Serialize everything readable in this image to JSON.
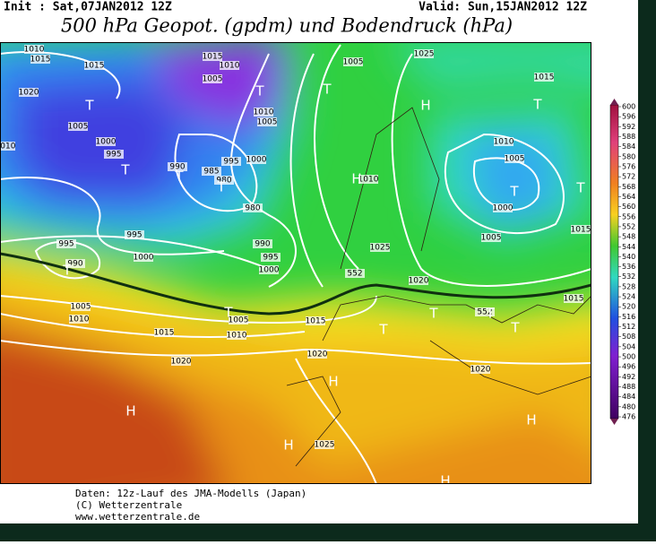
{
  "header": {
    "init": "Init : Sat,07JAN2012 12Z",
    "valid": "Valid: Sun,15JAN2012 12Z",
    "title": "500 hPa Geopot. (gpdm) und Bodendruck (hPa)"
  },
  "map": {
    "isobar_labels": [
      "1010",
      "1015",
      "1015",
      "1020",
      "1015",
      "1010",
      "1005",
      "1010",
      "1005",
      "1000",
      "995",
      "990",
      "985",
      "980",
      "980",
      "990",
      "995",
      "1000",
      "1005",
      "1000",
      "995",
      "995",
      "995",
      "990",
      "1000",
      "1005",
      "1025",
      "1015",
      "1010",
      "1005",
      "1000",
      "1005",
      "1010",
      "1025",
      "1020",
      "1015",
      "1005",
      "1010",
      "1015",
      "1005",
      "1010",
      "1015",
      "1020",
      "1020",
      "1020",
      "1025",
      "552",
      "552",
      "1015",
      "1010"
    ],
    "pressure_centers": [
      "T",
      "T",
      "T",
      "T",
      "T",
      "T",
      "T",
      "T",
      "T",
      "T",
      "T",
      "T",
      "T",
      "T",
      "T",
      "H",
      "H",
      "H",
      "H",
      "H",
      "H",
      "H"
    ]
  },
  "colorbar": {
    "labels": [
      600,
      596,
      592,
      588,
      584,
      580,
      576,
      572,
      568,
      564,
      560,
      556,
      552,
      548,
      544,
      540,
      536,
      532,
      528,
      524,
      520,
      516,
      512,
      508,
      504,
      500,
      496,
      492,
      488,
      484,
      480,
      476
    ]
  },
  "footer": {
    "lines": [
      "Daten: 12z-Lauf des JMA-Modells (Japan)",
      "(C) Wetterzentrale",
      "www.wetterzentrale.de"
    ]
  }
}
